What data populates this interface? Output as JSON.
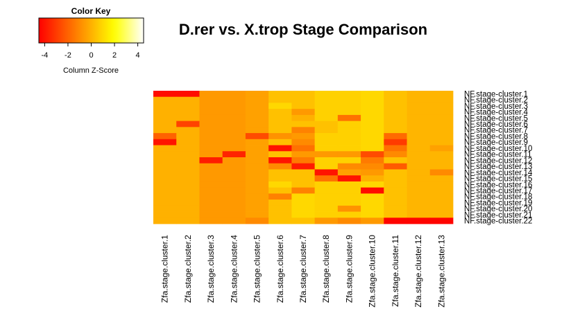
{
  "chart_data": {
    "type": "heatmap",
    "title": "D.rer vs. X.trop Stage Comparison",
    "color_key": {
      "title": "Color Key",
      "xlabel": "Column Z-Score",
      "ticks": [
        "-4",
        "-2",
        "0",
        "2",
        "4"
      ],
      "range": [
        -4.5,
        4.5
      ],
      "palette": [
        "#ff0000",
        "#ffff00",
        "#ffffff"
      ]
    },
    "columns": [
      "Zfa.stage.cluster.1",
      "Zfa.stage.cluster.2",
      "Zfa.stage.cluster.3",
      "Zfa.stage.cluster.4",
      "Zfa.stage.cluster.5",
      "Zfa.stage.cluster.6",
      "Zfa.stage.cluster.7",
      "Zfa.stage.cluster.8",
      "Zfa.stage.cluster.9",
      "Zfa.stage.cluster.10",
      "Zfa.stage.cluster.11",
      "Zfa.stage.cluster.12",
      "Zfa.stage.cluster.13"
    ],
    "rows": [
      "NF.stage-cluster.1",
      "NF.stage-cluster.2",
      "NF.stage-cluster.3",
      "NF.stage-cluster.4",
      "NF.stage-cluster.5",
      "NF.stage-cluster.6",
      "NF.stage-cluster.7",
      "NF.stage-cluster.8",
      "NF.stage-cluster.9",
      "NF.stage-cluster.10",
      "NF.stage-cluster.11",
      "NF.stage-cluster.12",
      "NF.stage-cluster.13",
      "NF.stage-cluster.14",
      "NF.stage-cluster.15",
      "NF.stage-cluster.16",
      "NF.stage-cluster.17",
      "NF.stage-cluster.18",
      "NF.stage-cluster.19",
      "NF.stage-cluster.20",
      "NF.stage-cluster.21",
      "NF.stage-cluster.22"
    ],
    "values": [
      [
        -4.2,
        -4.2,
        -0.6,
        -0.6,
        -0.4,
        0.4,
        0.4,
        0.8,
        0.8,
        1.0,
        0.4,
        0.1,
        0.1
      ],
      [
        0.0,
        0.0,
        -0.6,
        -0.6,
        -0.4,
        0.4,
        0.4,
        0.8,
        0.8,
        1.0,
        0.4,
        0.1,
        0.1
      ],
      [
        0.0,
        0.0,
        -0.6,
        -0.6,
        -0.4,
        1.0,
        0.4,
        0.8,
        0.8,
        1.0,
        0.4,
        0.1,
        0.1
      ],
      [
        0.0,
        0.0,
        -0.6,
        -0.6,
        -0.4,
        0.4,
        -0.6,
        0.8,
        0.8,
        1.0,
        0.4,
        0.1,
        0.1
      ],
      [
        0.0,
        0.0,
        -0.6,
        -0.6,
        -0.4,
        0.4,
        0.0,
        0.8,
        -1.6,
        1.0,
        0.4,
        0.1,
        0.1
      ],
      [
        0.0,
        -2.8,
        -0.6,
        -0.6,
        -0.4,
        0.4,
        0.4,
        0.4,
        0.8,
        1.0,
        0.4,
        0.1,
        0.1
      ],
      [
        0.0,
        0.0,
        -0.6,
        -0.6,
        -0.4,
        0.4,
        -1.2,
        0.4,
        0.8,
        1.0,
        0.4,
        0.1,
        0.1
      ],
      [
        -2.0,
        0.0,
        -0.6,
        -0.6,
        -2.6,
        -0.8,
        -0.6,
        0.8,
        0.8,
        1.0,
        -1.8,
        0.1,
        0.1
      ],
      [
        -4.0,
        0.0,
        -0.6,
        -0.6,
        -0.4,
        0.4,
        -1.0,
        0.8,
        0.8,
        1.0,
        -3.0,
        0.1,
        0.1
      ],
      [
        0.0,
        0.0,
        -0.6,
        -0.6,
        -0.4,
        -4.0,
        -1.6,
        0.8,
        0.8,
        1.0,
        -1.6,
        0.1,
        -0.4
      ],
      [
        0.0,
        0.0,
        -0.6,
        -3.6,
        -0.4,
        0.4,
        -0.6,
        -0.6,
        -0.6,
        -2.6,
        -1.0,
        0.1,
        0.1
      ],
      [
        0.0,
        0.0,
        -3.8,
        -0.6,
        -0.4,
        -4.0,
        -1.4,
        0.8,
        0.8,
        -1.4,
        0.4,
        0.1,
        0.1
      ],
      [
        0.0,
        0.0,
        -0.6,
        -0.6,
        -0.4,
        -1.0,
        -3.8,
        0.8,
        -1.0,
        -1.0,
        -2.2,
        0.1,
        0.1
      ],
      [
        0.0,
        0.0,
        -0.6,
        -0.6,
        -0.4,
        0.4,
        0.4,
        -4.0,
        -0.4,
        -0.6,
        0.4,
        0.1,
        -1.0
      ],
      [
        0.0,
        0.0,
        -0.6,
        -0.6,
        -0.4,
        0.4,
        0.4,
        -1.6,
        -4.0,
        0.0,
        0.4,
        0.1,
        0.1
      ],
      [
        0.0,
        0.0,
        -0.6,
        -0.6,
        -0.4,
        1.0,
        0.4,
        0.8,
        0.8,
        1.0,
        0.4,
        0.1,
        0.1
      ],
      [
        0.0,
        0.0,
        -0.6,
        -0.6,
        -0.4,
        0.4,
        -1.2,
        0.8,
        0.8,
        -4.2,
        0.4,
        0.1,
        0.1
      ],
      [
        0.0,
        0.0,
        -0.6,
        -0.6,
        -0.4,
        -1.2,
        1.0,
        0.8,
        0.8,
        1.0,
        0.4,
        0.1,
        0.1
      ],
      [
        0.0,
        0.0,
        -0.6,
        -0.6,
        -0.4,
        0.4,
        1.0,
        0.8,
        0.8,
        1.0,
        0.4,
        0.1,
        0.1
      ],
      [
        0.0,
        0.0,
        -0.6,
        -0.6,
        -0.4,
        0.4,
        1.0,
        0.8,
        -0.8,
        1.0,
        0.4,
        0.1,
        0.1
      ],
      [
        0.0,
        0.0,
        -0.6,
        -0.6,
        -0.4,
        0.4,
        1.0,
        0.8,
        0.8,
        1.0,
        0.4,
        0.1,
        0.1
      ],
      [
        0.0,
        0.0,
        -0.6,
        -0.6,
        -1.0,
        0.4,
        0.4,
        -0.6,
        -1.0,
        -0.6,
        -4.4,
        -4.4,
        -4.4
      ]
    ]
  }
}
